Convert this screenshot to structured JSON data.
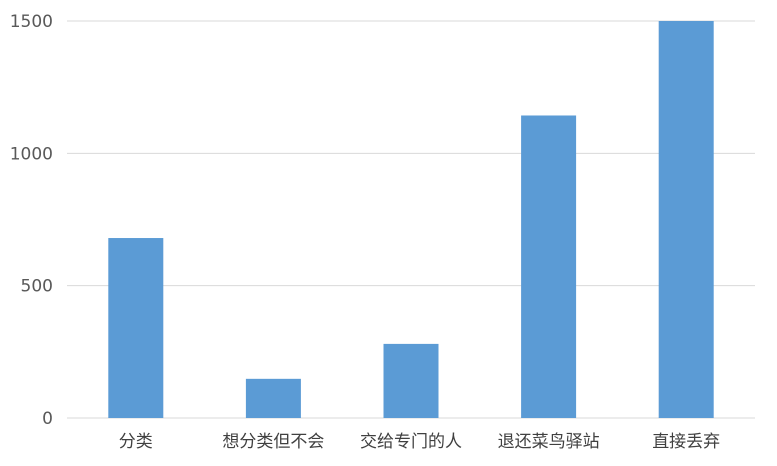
{
  "chart_data": {
    "type": "bar",
    "title": "",
    "xlabel": "",
    "ylabel": "",
    "categories": [
      "分类",
      "想分类但不会",
      "交给专门的人",
      "退还菜鸟驿站",
      "直接丢弃"
    ],
    "values": [
      680,
      148,
      280,
      1143,
      1500
    ],
    "ylim": [
      0,
      1500
    ],
    "yticks": [
      0,
      500,
      1000,
      1500
    ],
    "bar_color": "#5b9bd5",
    "grid": true,
    "grid_color": "#d9d9d9",
    "legend": "none"
  }
}
